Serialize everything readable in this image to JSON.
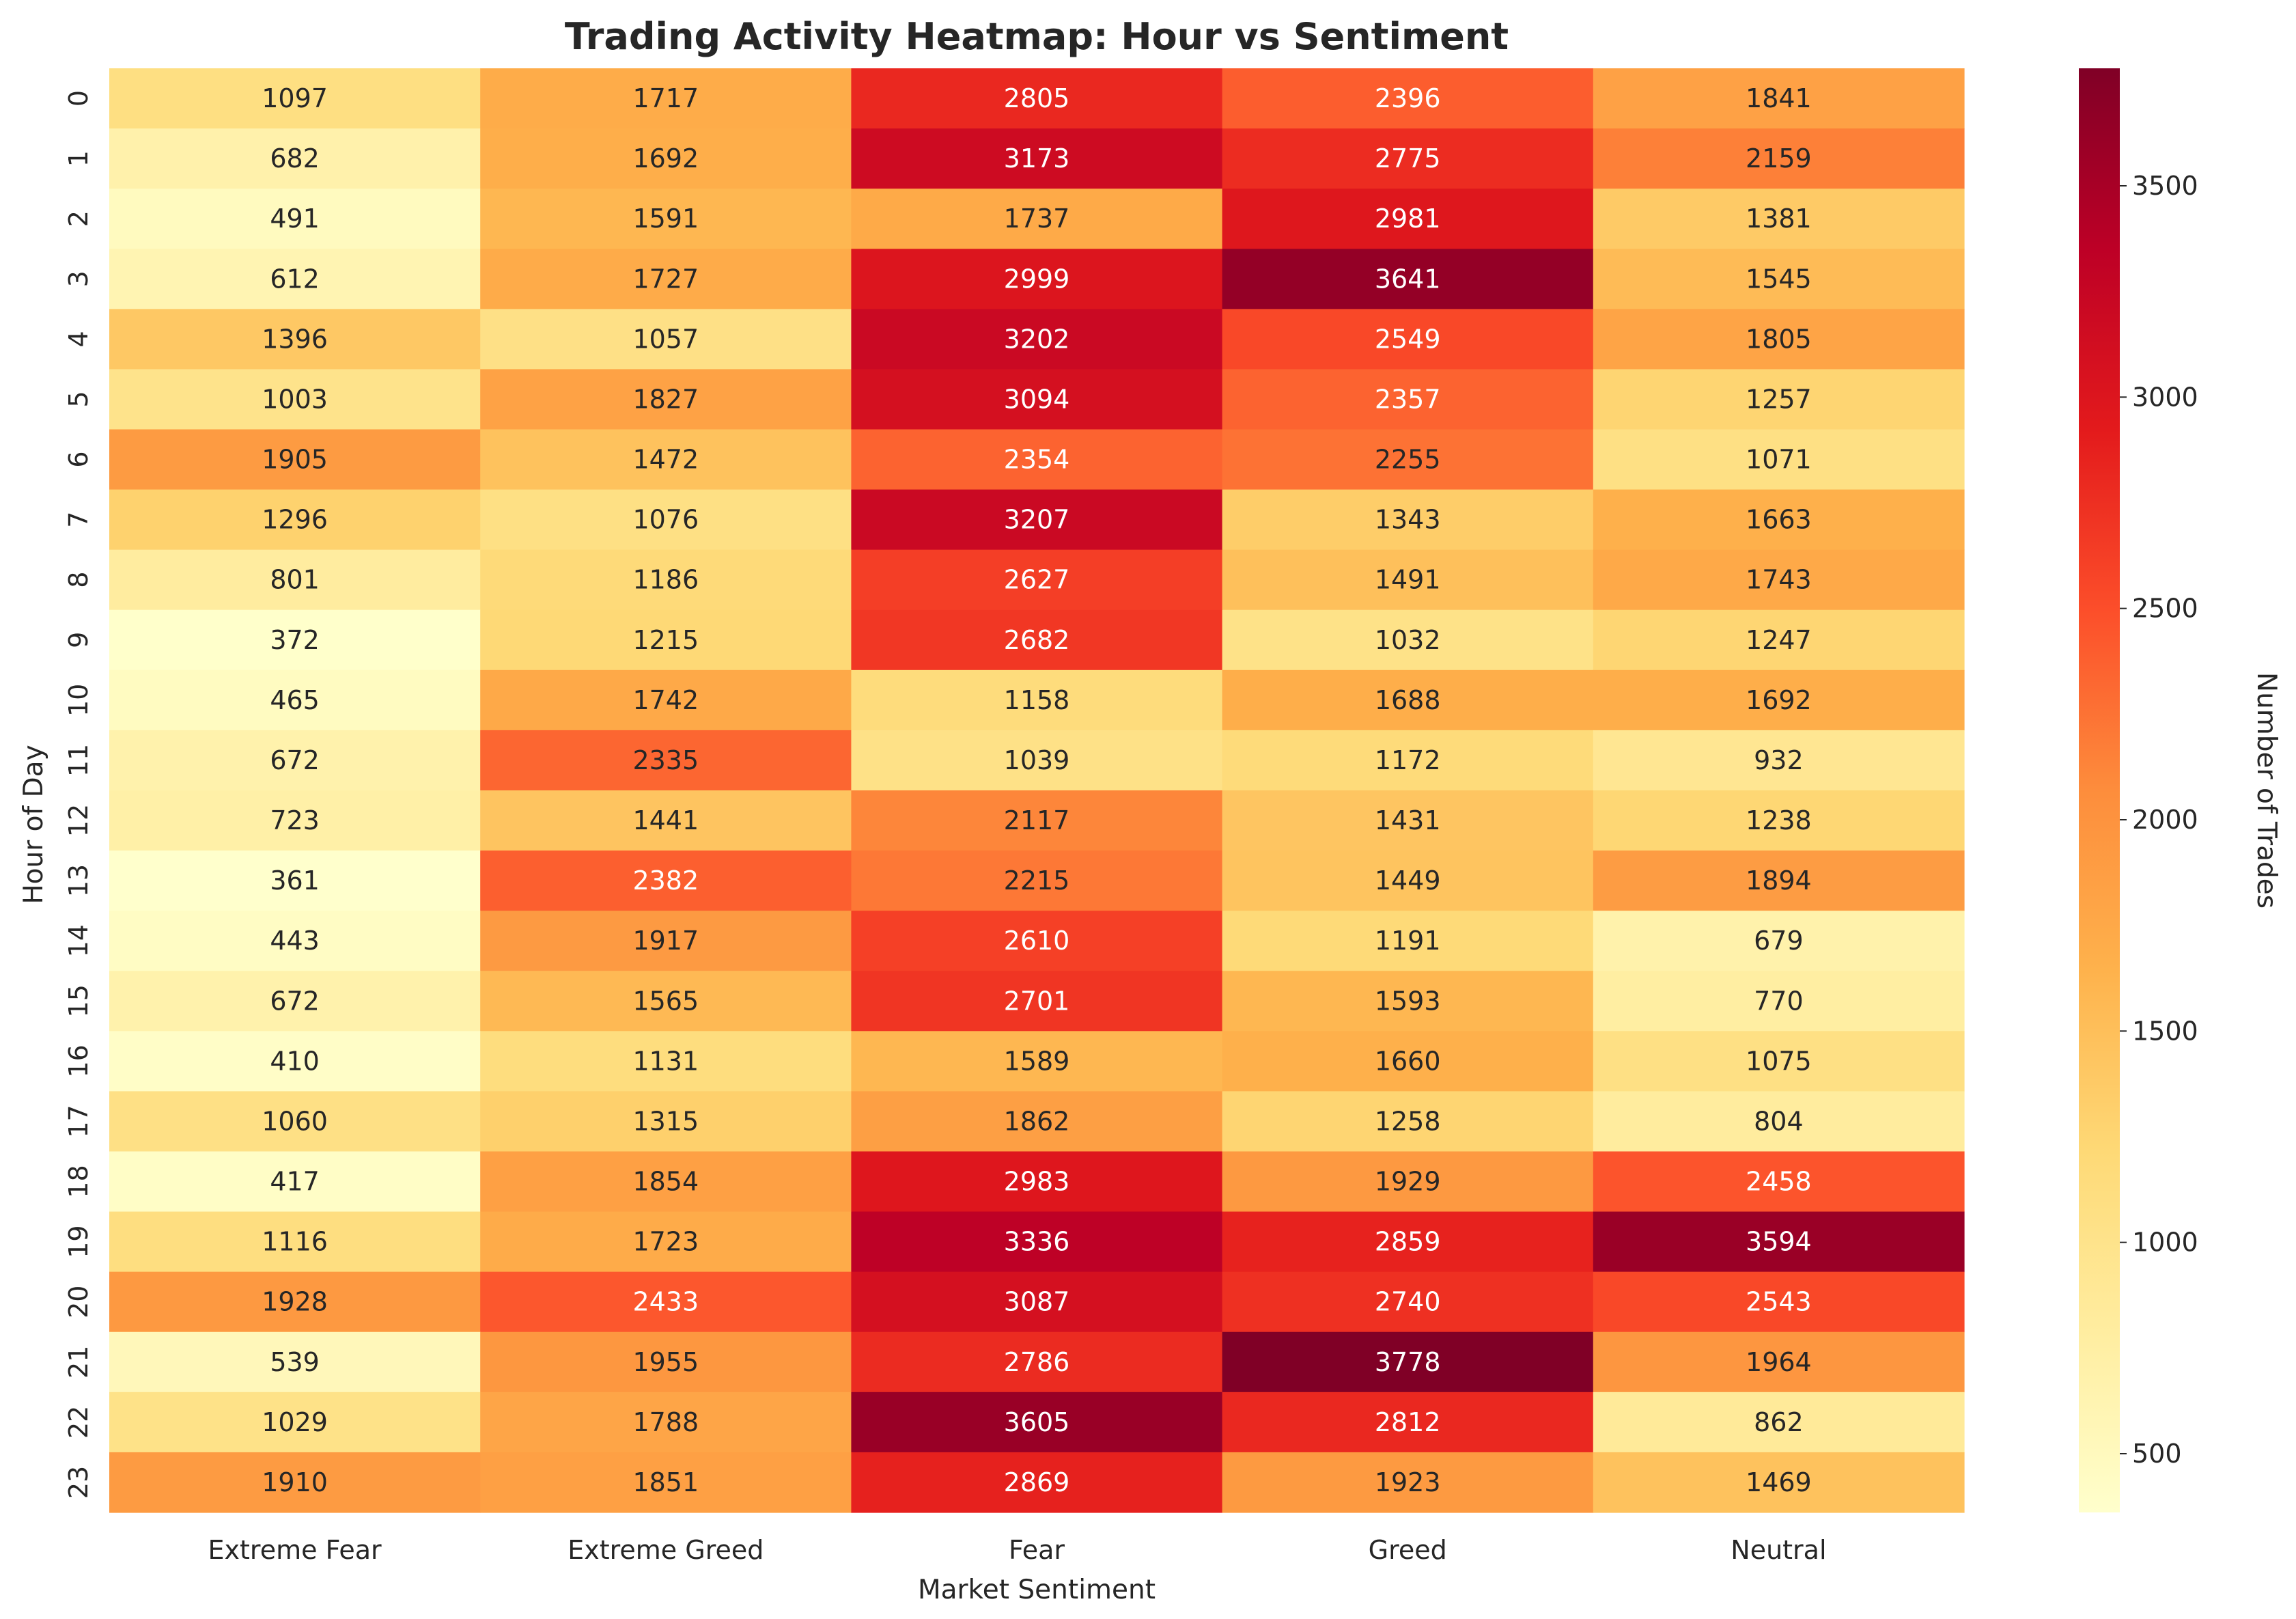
{
  "chart_data": {
    "type": "heatmap",
    "title": "Trading Activity Heatmap: Hour vs Sentiment",
    "xlabel": "Market Sentiment",
    "ylabel": "Hour of Day",
    "colorbar_label": "Number of Trades",
    "colormap": "YlOrRd",
    "x_categories": [
      "Extreme Fear",
      "Extreme Greed",
      "Fear",
      "Greed",
      "Neutral"
    ],
    "y_categories": [
      "0",
      "1",
      "2",
      "3",
      "4",
      "5",
      "6",
      "7",
      "8",
      "9",
      "10",
      "11",
      "12",
      "13",
      "14",
      "15",
      "16",
      "17",
      "18",
      "19",
      "20",
      "21",
      "22",
      "23"
    ],
    "values": [
      [
        1097,
        1717,
        2805,
        2396,
        1841
      ],
      [
        682,
        1692,
        3173,
        2775,
        2159
      ],
      [
        491,
        1591,
        1737,
        2981,
        1381
      ],
      [
        612,
        1727,
        2999,
        3641,
        1545
      ],
      [
        1396,
        1057,
        3202,
        2549,
        1805
      ],
      [
        1003,
        1827,
        3094,
        2357,
        1257
      ],
      [
        1905,
        1472,
        2354,
        2255,
        1071
      ],
      [
        1296,
        1076,
        3207,
        1343,
        1663
      ],
      [
        801,
        1186,
        2627,
        1491,
        1743
      ],
      [
        372,
        1215,
        2682,
        1032,
        1247
      ],
      [
        465,
        1742,
        1158,
        1688,
        1692
      ],
      [
        672,
        2335,
        1039,
        1172,
        932
      ],
      [
        723,
        1441,
        2117,
        1431,
        1238
      ],
      [
        361,
        2382,
        2215,
        1449,
        1894
      ],
      [
        443,
        1917,
        2610,
        1191,
        679
      ],
      [
        672,
        1565,
        2701,
        1593,
        770
      ],
      [
        410,
        1131,
        1589,
        1660,
        1075
      ],
      [
        1060,
        1315,
        1862,
        1258,
        804
      ],
      [
        417,
        1854,
        2983,
        1929,
        2458
      ],
      [
        1116,
        1723,
        3336,
        2859,
        3594
      ],
      [
        1928,
        2433,
        3087,
        2740,
        2543
      ],
      [
        539,
        1955,
        2786,
        3778,
        1964
      ],
      [
        1029,
        1788,
        3605,
        2812,
        862
      ],
      [
        1910,
        1851,
        2869,
        1923,
        1469
      ]
    ],
    "value_range": [
      361,
      3778
    ],
    "colorbar_ticks": [
      500,
      1000,
      1500,
      2000,
      2500,
      3000,
      3500
    ],
    "annotations": "cell values shown",
    "grid": false
  }
}
